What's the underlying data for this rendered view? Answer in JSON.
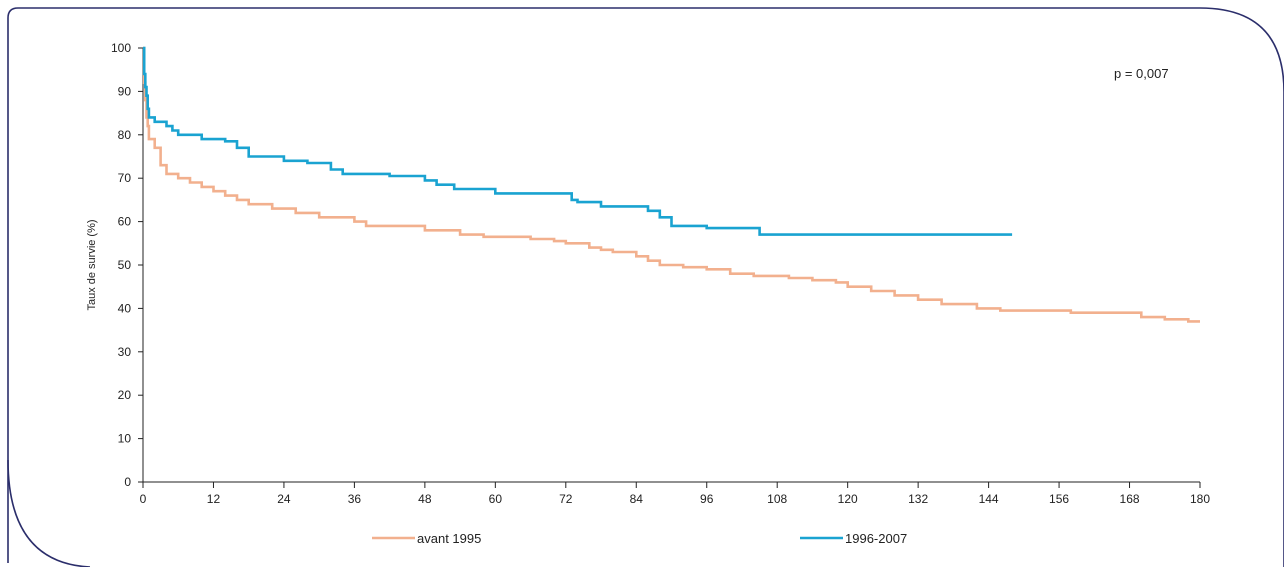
{
  "chart_data": {
    "type": "line",
    "title": "",
    "xlabel": "",
    "ylabel": "Taux de survie (%)",
    "xlim": [
      0,
      180
    ],
    "ylim": [
      0,
      100
    ],
    "xticks": [
      0,
      12,
      24,
      36,
      48,
      60,
      72,
      84,
      96,
      108,
      120,
      132,
      144,
      156,
      168,
      180
    ],
    "yticks": [
      0,
      10,
      20,
      30,
      40,
      50,
      60,
      70,
      80,
      90,
      100
    ],
    "grid": false,
    "legend_position": "bottom",
    "annotation": "p = 0,007",
    "series": [
      {
        "name": "avant 1995",
        "color": "#f2b08e",
        "step": true,
        "points": [
          [
            0,
            100
          ],
          [
            0.2,
            92
          ],
          [
            0.4,
            88
          ],
          [
            0.6,
            84
          ],
          [
            0.8,
            82
          ],
          [
            1,
            79
          ],
          [
            2,
            77
          ],
          [
            3,
            73
          ],
          [
            4,
            71
          ],
          [
            6,
            70
          ],
          [
            8,
            69
          ],
          [
            10,
            68
          ],
          [
            12,
            67
          ],
          [
            14,
            66
          ],
          [
            16,
            65
          ],
          [
            18,
            64
          ],
          [
            22,
            63
          ],
          [
            26,
            62
          ],
          [
            30,
            61
          ],
          [
            36,
            60
          ],
          [
            38,
            59
          ],
          [
            44,
            59
          ],
          [
            48,
            58
          ],
          [
            54,
            57
          ],
          [
            58,
            56.5
          ],
          [
            66,
            56
          ],
          [
            70,
            55.5
          ],
          [
            72,
            55
          ],
          [
            76,
            54
          ],
          [
            78,
            53.5
          ],
          [
            80,
            53
          ],
          [
            84,
            52
          ],
          [
            86,
            51
          ],
          [
            88,
            50
          ],
          [
            92,
            49.5
          ],
          [
            96,
            49
          ],
          [
            100,
            48
          ],
          [
            104,
            47.5
          ],
          [
            110,
            47
          ],
          [
            114,
            46.5
          ],
          [
            118,
            46
          ],
          [
            120,
            45
          ],
          [
            124,
            44
          ],
          [
            128,
            43
          ],
          [
            132,
            42
          ],
          [
            136,
            41
          ],
          [
            142,
            40
          ],
          [
            146,
            39.5
          ],
          [
            152,
            39.5
          ],
          [
            158,
            39
          ],
          [
            164,
            39
          ],
          [
            170,
            38
          ],
          [
            174,
            37.5
          ],
          [
            178,
            37
          ],
          [
            180,
            37
          ]
        ]
      },
      {
        "name": "1996-2007",
        "color": "#1aa3d1",
        "step": true,
        "points": [
          [
            0,
            100
          ],
          [
            0.2,
            94
          ],
          [
            0.4,
            91
          ],
          [
            0.6,
            89
          ],
          [
            0.8,
            86
          ],
          [
            1,
            84
          ],
          [
            2,
            83
          ],
          [
            4,
            82
          ],
          [
            5,
            81
          ],
          [
            6,
            80
          ],
          [
            10,
            79
          ],
          [
            14,
            78.5
          ],
          [
            16,
            77
          ],
          [
            18,
            75
          ],
          [
            24,
            74
          ],
          [
            28,
            73.5
          ],
          [
            32,
            72
          ],
          [
            34,
            71
          ],
          [
            42,
            70.5
          ],
          [
            48,
            69.5
          ],
          [
            50,
            68.5
          ],
          [
            53,
            67.5
          ],
          [
            60,
            66.5
          ],
          [
            72,
            66.5
          ],
          [
            73,
            65
          ],
          [
            74,
            64.5
          ],
          [
            78,
            63.5
          ],
          [
            86,
            62.5
          ],
          [
            88,
            61
          ],
          [
            90,
            59
          ],
          [
            96,
            58.5
          ],
          [
            104,
            58.5
          ],
          [
            105,
            57
          ],
          [
            116,
            57
          ],
          [
            132,
            57
          ],
          [
            148,
            57
          ]
        ]
      }
    ]
  }
}
